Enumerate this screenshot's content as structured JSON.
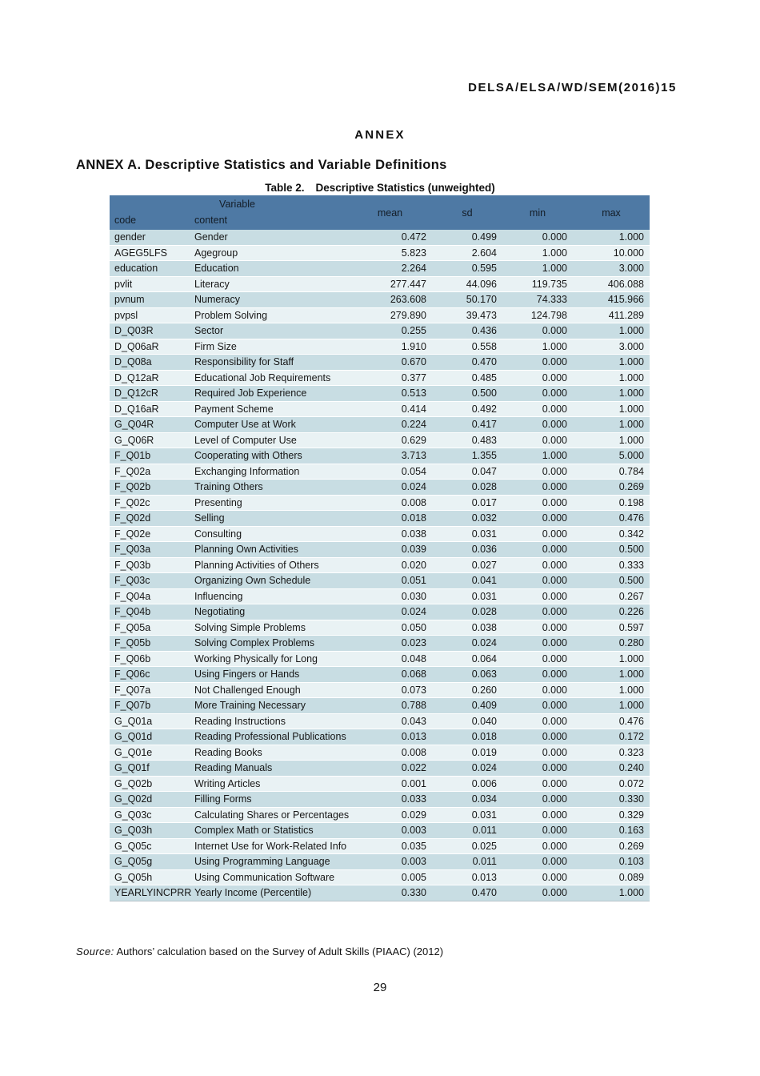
{
  "page": {
    "doc_ref": "DELSA/ELSA/WD/SEM(2016)15",
    "annex_heading": "ANNEX",
    "section_title": "ANNEX A. Descriptive Statistics and Variable Definitions",
    "table_caption_label": "Table 2.",
    "table_caption_text": "Descriptive Statistics (unweighted)",
    "source_label": "Source:",
    "source_text": "Authors’ calculation based on the Survey of Adult Skills (PIAAC) (2012)",
    "page_number": "29"
  },
  "table": {
    "header": {
      "group_label": "Variable",
      "col_code": "code",
      "col_content": "content",
      "col_mean": "mean",
      "col_sd": "sd",
      "col_min": "min",
      "col_max": "max"
    },
    "rows": [
      {
        "code": "gender",
        "content": "Gender",
        "mean": "0.472",
        "sd": "0.499",
        "min": "0.000",
        "max": "1.000"
      },
      {
        "code": "AGEG5LFS",
        "content": "Agegroup",
        "mean": "5.823",
        "sd": "2.604",
        "min": "1.000",
        "max": "10.000"
      },
      {
        "code": "education",
        "content": "Education",
        "mean": "2.264",
        "sd": "0.595",
        "min": "1.000",
        "max": "3.000"
      },
      {
        "code": "pvlit",
        "content": "Literacy",
        "mean": "277.447",
        "sd": "44.096",
        "min": "119.735",
        "max": "406.088"
      },
      {
        "code": "pvnum",
        "content": "Numeracy",
        "mean": "263.608",
        "sd": "50.170",
        "min": "74.333",
        "max": "415.966"
      },
      {
        "code": "pvpsl",
        "content": "Problem Solving",
        "mean": "279.890",
        "sd": "39.473",
        "min": "124.798",
        "max": "411.289"
      },
      {
        "code": "D_Q03R",
        "content": "Sector",
        "mean": "0.255",
        "sd": "0.436",
        "min": "0.000",
        "max": "1.000"
      },
      {
        "code": "D_Q06aR",
        "content": "Firm Size",
        "mean": "1.910",
        "sd": "0.558",
        "min": "1.000",
        "max": "3.000"
      },
      {
        "code": "D_Q08a",
        "content": "Responsibility for Staff",
        "mean": "0.670",
        "sd": "0.470",
        "min": "0.000",
        "max": "1.000"
      },
      {
        "code": "D_Q12aR",
        "content": "Educational Job Requirements",
        "mean": "0.377",
        "sd": "0.485",
        "min": "0.000",
        "max": "1.000"
      },
      {
        "code": "D_Q12cR",
        "content": "Required Job Experience",
        "mean": "0.513",
        "sd": "0.500",
        "min": "0.000",
        "max": "1.000"
      },
      {
        "code": "D_Q16aR",
        "content": "Payment Scheme",
        "mean": "0.414",
        "sd": "0.492",
        "min": "0.000",
        "max": "1.000"
      },
      {
        "code": "G_Q04R",
        "content": "Computer Use at Work",
        "mean": "0.224",
        "sd": "0.417",
        "min": "0.000",
        "max": "1.000"
      },
      {
        "code": "G_Q06R",
        "content": "Level of Computer Use",
        "mean": "0.629",
        "sd": "0.483",
        "min": "0.000",
        "max": "1.000"
      },
      {
        "code": "F_Q01b",
        "content": "Cooperating with Others",
        "mean": "3.713",
        "sd": "1.355",
        "min": "1.000",
        "max": "5.000"
      },
      {
        "code": "F_Q02a",
        "content": "Exchanging Information",
        "mean": "0.054",
        "sd": "0.047",
        "min": "0.000",
        "max": "0.784"
      },
      {
        "code": "F_Q02b",
        "content": "Training Others",
        "mean": "0.024",
        "sd": "0.028",
        "min": "0.000",
        "max": "0.269"
      },
      {
        "code": "F_Q02c",
        "content": "Presenting",
        "mean": "0.008",
        "sd": "0.017",
        "min": "0.000",
        "max": "0.198"
      },
      {
        "code": "F_Q02d",
        "content": "Selling",
        "mean": "0.018",
        "sd": "0.032",
        "min": "0.000",
        "max": "0.476"
      },
      {
        "code": "F_Q02e",
        "content": "Consulting",
        "mean": "0.038",
        "sd": "0.031",
        "min": "0.000",
        "max": "0.342"
      },
      {
        "code": "F_Q03a",
        "content": "Planning Own Activities",
        "mean": "0.039",
        "sd": "0.036",
        "min": "0.000",
        "max": "0.500"
      },
      {
        "code": "F_Q03b",
        "content": "Planning Activities of Others",
        "mean": "0.020",
        "sd": "0.027",
        "min": "0.000",
        "max": "0.333"
      },
      {
        "code": "F_Q03c",
        "content": "Organizing Own Schedule",
        "mean": "0.051",
        "sd": "0.041",
        "min": "0.000",
        "max": "0.500"
      },
      {
        "code": "F_Q04a",
        "content": "Influencing",
        "mean": "0.030",
        "sd": "0.031",
        "min": "0.000",
        "max": "0.267"
      },
      {
        "code": "F_Q04b",
        "content": "Negotiating",
        "mean": "0.024",
        "sd": "0.028",
        "min": "0.000",
        "max": "0.226"
      },
      {
        "code": "F_Q05a",
        "content": "Solving Simple Problems",
        "mean": "0.050",
        "sd": "0.038",
        "min": "0.000",
        "max": "0.597"
      },
      {
        "code": "F_Q05b",
        "content": "Solving Complex Problems",
        "mean": "0.023",
        "sd": "0.024",
        "min": "0.000",
        "max": "0.280"
      },
      {
        "code": "F_Q06b",
        "content": "Working Physically for Long",
        "mean": "0.048",
        "sd": "0.064",
        "min": "0.000",
        "max": "1.000"
      },
      {
        "code": "F_Q06c",
        "content": "Using Fingers or Hands",
        "mean": "0.068",
        "sd": "0.063",
        "min": "0.000",
        "max": "1.000"
      },
      {
        "code": "F_Q07a",
        "content": "Not Challenged Enough",
        "mean": "0.073",
        "sd": "0.260",
        "min": "0.000",
        "max": "1.000"
      },
      {
        "code": "F_Q07b",
        "content": "More Training Necessary",
        "mean": "0.788",
        "sd": "0.409",
        "min": "0.000",
        "max": "1.000"
      },
      {
        "code": "G_Q01a",
        "content": "Reading Instructions",
        "mean": "0.043",
        "sd": "0.040",
        "min": "0.000",
        "max": "0.476"
      },
      {
        "code": "G_Q01d",
        "content": "Reading Professional Publications",
        "mean": "0.013",
        "sd": "0.018",
        "min": "0.000",
        "max": "0.172"
      },
      {
        "code": "G_Q01e",
        "content": "Reading Books",
        "mean": "0.008",
        "sd": "0.019",
        "min": "0.000",
        "max": "0.323"
      },
      {
        "code": "G_Q01f",
        "content": "Reading Manuals",
        "mean": "0.022",
        "sd": "0.024",
        "min": "0.000",
        "max": "0.240"
      },
      {
        "code": "G_Q02b",
        "content": "Writing Articles",
        "mean": "0.001",
        "sd": "0.006",
        "min": "0.000",
        "max": "0.072"
      },
      {
        "code": "G_Q02d",
        "content": "Filling Forms",
        "mean": "0.033",
        "sd": "0.034",
        "min": "0.000",
        "max": "0.330"
      },
      {
        "code": "G_Q03c",
        "content": "Calculating Shares or Percentages",
        "mean": "0.029",
        "sd": "0.031",
        "min": "0.000",
        "max": "0.329"
      },
      {
        "code": "G_Q03h",
        "content": "Complex Math or Statistics",
        "mean": "0.003",
        "sd": "0.011",
        "min": "0.000",
        "max": "0.163"
      },
      {
        "code": "G_Q05c",
        "content": "Internet Use for Work-Related Info",
        "mean": "0.035",
        "sd": "0.025",
        "min": "0.000",
        "max": "0.269"
      },
      {
        "code": "G_Q05g",
        "content": "Using Programming Language",
        "mean": "0.003",
        "sd": "0.011",
        "min": "0.000",
        "max": "0.103"
      },
      {
        "code": "G_Q05h",
        "content": "Using Communication Software",
        "mean": "0.005",
        "sd": "0.013",
        "min": "0.000",
        "max": "0.089"
      },
      {
        "code": "YEARLYINCPRR",
        "content": "Yearly Income (Percentile)",
        "mean": "0.330",
        "sd": "0.470",
        "min": "0.000",
        "max": "1.000"
      }
    ]
  },
  "colors": {
    "header_bg": "#4e79a4",
    "row_odd": "#c8dde3",
    "row_even": "#e9f2f4"
  }
}
